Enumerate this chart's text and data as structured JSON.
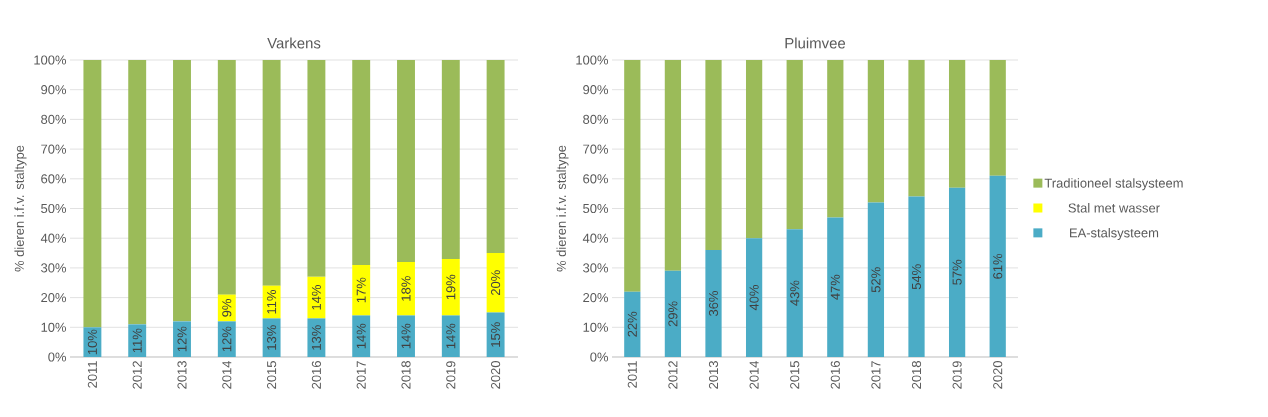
{
  "chart_data": [
    {
      "type": "bar",
      "title": "Varkens",
      "ylabel": "% dieren i.f.v. staltype",
      "stacked": true,
      "grid": "y",
      "legend": false,
      "categories": [
        "2011",
        "2012",
        "2013",
        "2014",
        "2015",
        "2016",
        "2017",
        "2018",
        "2019",
        "2020"
      ],
      "ylim": [
        0,
        100
      ],
      "yticks": [
        {
          "value": 0,
          "label": "0%"
        },
        {
          "value": 10,
          "label": "10%"
        },
        {
          "value": 20,
          "label": "20%"
        },
        {
          "value": 30,
          "label": "30%"
        },
        {
          "value": 40,
          "label": "40%"
        },
        {
          "value": 50,
          "label": "50%"
        },
        {
          "value": 60,
          "label": "60%"
        },
        {
          "value": 70,
          "label": "70%"
        },
        {
          "value": 80,
          "label": "80%"
        },
        {
          "value": 90,
          "label": "90%"
        },
        {
          "value": 100,
          "label": "100%"
        }
      ],
      "series": [
        {
          "color": "#4bacc6",
          "values": [
            10,
            11,
            12,
            12,
            13,
            13,
            14,
            14,
            14,
            15
          ],
          "value_labels": [
            "10%",
            "11%",
            "12%",
            "12%",
            "13%",
            "13%",
            "14%",
            "14%",
            "14%",
            "15%"
          ]
        },
        {
          "color": "#ffff00",
          "values": [
            0,
            0,
            0,
            9,
            11,
            14,
            17,
            18,
            19,
            20
          ],
          "value_labels": [
            null,
            null,
            null,
            "9%",
            "11%",
            "14%",
            "17%",
            "18%",
            "19%",
            "20%"
          ]
        },
        {
          "color": "#9bbb59",
          "values": [
            90,
            89,
            88,
            79,
            76,
            73,
            69,
            68,
            67,
            65
          ]
        }
      ]
    },
    {
      "type": "bar",
      "title": "Pluimvee",
      "ylabel": "% dieren i.f.v. staltype",
      "stacked": true,
      "grid": "y",
      "legend": "right",
      "categories": [
        "2011",
        "2012",
        "2013",
        "2014",
        "2015",
        "2016",
        "2017",
        "2018",
        "2019",
        "2020"
      ],
      "ylim": [
        0,
        100
      ],
      "yticks": [
        {
          "value": 0,
          "label": "0%"
        },
        {
          "value": 10,
          "label": "10%"
        },
        {
          "value": 20,
          "label": "20%"
        },
        {
          "value": 30,
          "label": "30%"
        },
        {
          "value": 40,
          "label": "40%"
        },
        {
          "value": 50,
          "label": "50%"
        },
        {
          "value": 60,
          "label": "60%"
        },
        {
          "value": 70,
          "label": "70%"
        },
        {
          "value": 80,
          "label": "80%"
        },
        {
          "value": 90,
          "label": "90%"
        },
        {
          "value": 100,
          "label": "100%"
        }
      ],
      "series": [
        {
          "name": "EA-stalsysteem",
          "color": "#4bacc6",
          "values": [
            22,
            29,
            36,
            40,
            43,
            47,
            52,
            54,
            57,
            61
          ],
          "value_labels": [
            "22%",
            "29%",
            "36%",
            "40%",
            "43%",
            "47%",
            "52%",
            "54%",
            "57%",
            "61%"
          ]
        },
        {
          "name": "Stal met wasser",
          "color": "#ffff00",
          "values": [
            0,
            0,
            0,
            0,
            0,
            0,
            0,
            0,
            0,
            0
          ]
        },
        {
          "name": "Traditioneel stalsysteem",
          "color": "#9bbb59",
          "values": [
            78,
            71,
            64,
            60,
            57,
            53,
            48,
            46,
            43,
            39
          ]
        }
      ]
    }
  ]
}
